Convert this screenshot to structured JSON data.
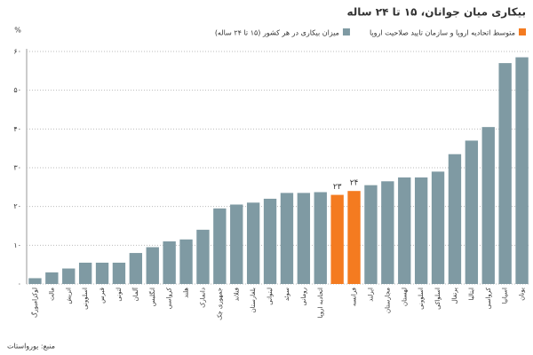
{
  "chart_data": {
    "type": "bar",
    "title": "بیکاری میان جوانان، ۱۵ تا ۲۴ ساله",
    "y_label": "%",
    "source": "منبع: یورواستات",
    "categories": [
      "لوکزامبورگ",
      "مالت",
      "اتریش",
      "اسلوونی",
      "قبرس",
      "لتونی",
      "آلمان",
      "انگلیس",
      "کرواسی",
      "هلند",
      "دانمارک",
      "جمهوری چک",
      "فنلاند",
      "بلغارستان",
      "لیتوانی",
      "سوئد",
      "رومانی",
      "اتحادیه اروپا",
      null,
      "فرانسه",
      "ایرلند",
      "مجارستان",
      "لهستان",
      "اسلوونی",
      "اسلواکی",
      "پرتغال",
      "ایتالیا",
      "کرواسی",
      "اسپانیا",
      "یونان"
    ],
    "series": [
      {
        "name": "میزان بیکاری در هر کشور (۱۵ تا ۲۴ ساله)",
        "color": "#7f9aa3",
        "values": [
          1.5,
          3,
          4,
          5.5,
          5.5,
          5.5,
          8,
          9.5,
          11,
          11.5,
          14,
          19.5,
          20.5,
          21,
          22,
          23.5,
          23.5,
          23.7,
          null,
          null,
          25.5,
          26.5,
          27.5,
          27.5,
          29,
          33.5,
          37,
          40.5,
          57,
          58.5
        ]
      },
      {
        "name": "متوسط اتحادیه اروپا و سازمان تایید صلاحیت اروپا",
        "color": "#f47b20",
        "values": [
          null,
          null,
          null,
          null,
          null,
          null,
          null,
          null,
          null,
          null,
          null,
          null,
          null,
          null,
          null,
          null,
          null,
          null,
          23,
          24,
          null,
          null,
          null,
          null,
          null,
          null,
          null,
          null,
          null,
          null
        ],
        "value_labels": [
          null,
          null,
          null,
          null,
          null,
          null,
          null,
          null,
          null,
          null,
          null,
          null,
          null,
          null,
          null,
          null,
          null,
          null,
          "۲۳",
          "۲۴",
          null,
          null,
          null,
          null,
          null,
          null,
          null,
          null,
          null,
          null
        ]
      }
    ],
    "ylim": [
      0,
      60
    ],
    "yticks": [
      {
        "value": 0,
        "label": "۰"
      },
      {
        "value": 10,
        "label": "۱۰"
      },
      {
        "value": 20,
        "label": "۲۰"
      },
      {
        "value": 30,
        "label": "۳۰"
      },
      {
        "value": 40,
        "label": "۴۰"
      },
      {
        "value": 50,
        "label": "۵۰"
      },
      {
        "value": 60,
        "label": "۶۰"
      }
    ],
    "grid": true
  }
}
